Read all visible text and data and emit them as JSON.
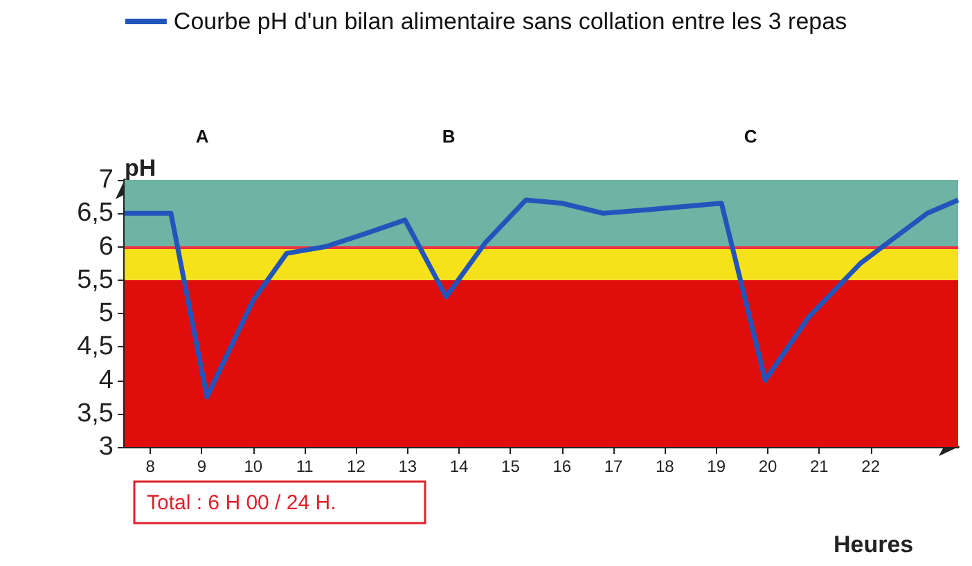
{
  "chart_data": {
    "type": "line",
    "xlabel": "Heures",
    "ylabel": "pH",
    "x": [
      7.5,
      8.4,
      9.1,
      10.0,
      10.65,
      11.4,
      12.2,
      12.95,
      13.75,
      14.5,
      15.3,
      16.0,
      16.8,
      17.6,
      19.1,
      19.95,
      20.8,
      21.8,
      23.1,
      23.7
    ],
    "series": [
      {
        "name": "Courbe pH d'un bilan alimentaire sans collation entre les 3 repas",
        "color": "#2255bb",
        "values": [
          6.5,
          6.5,
          3.75,
          5.2,
          5.9,
          6.0,
          6.2,
          6.4,
          5.25,
          6.05,
          6.7,
          6.65,
          6.5,
          6.55,
          6.65,
          4.0,
          4.95,
          5.75,
          6.5,
          6.7
        ]
      }
    ],
    "xlim": [
      7.5,
      23.7
    ],
    "xticks": [
      8,
      9,
      10,
      11,
      12,
      13,
      14,
      15,
      16,
      17,
      18,
      19,
      20,
      21,
      22
    ],
    "ylim": [
      3,
      7
    ],
    "yticks": [
      3,
      {
        "value": 3.5,
        "label": "3,5"
      },
      4,
      {
        "value": 4.5,
        "label": "4,5"
      },
      5,
      {
        "value": 5.5,
        "label": "5,5"
      },
      6,
      {
        "value": 6.5,
        "label": "6,5"
      },
      7
    ],
    "bands": [
      {
        "axis": "y",
        "from": 3,
        "to": 5.5,
        "color": "#e00d0d"
      },
      {
        "axis": "y",
        "from": 5.5,
        "to": 6,
        "color": "#f5e21a"
      },
      {
        "axis": "y",
        "from": 6,
        "to": 7,
        "color": "#6fb3a4"
      }
    ],
    "ref_lines": [
      {
        "axis": "y",
        "value": 6,
        "color": "#f03040",
        "line_style": "solid"
      }
    ],
    "annotations": [
      "A",
      "B",
      "C",
      "Total : 6 H 00 / 24 H."
    ],
    "legend": "top",
    "grid": false,
    "marker": "none",
    "line_style": "solid"
  }
}
